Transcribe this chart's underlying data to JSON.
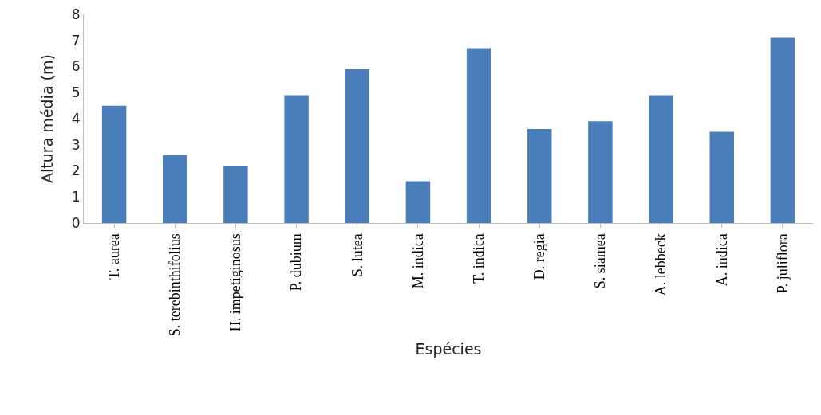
{
  "chart_data": {
    "type": "bar",
    "xlabel": "Espécies",
    "ylabel": "Altura média (m)",
    "categories": [
      "T. aurea",
      "S. terebinthifolius",
      "H. impetiginosus",
      "P. dubium",
      "S. lutea",
      "M. indica",
      "T. indica",
      "D. regia",
      "S. siamea",
      "A. lebbeck",
      "A. indica",
      "P. juliflora"
    ],
    "values": [
      4.5,
      2.6,
      2.2,
      4.9,
      5.9,
      1.6,
      6.7,
      3.6,
      3.9,
      4.9,
      3.5,
      7.1
    ],
    "color": "#4a7ebb",
    "ylim": [
      0,
      8
    ],
    "yticks": [
      0,
      1,
      2,
      3,
      4,
      5,
      6,
      7,
      8
    ],
    "grid": false,
    "legend": false
  }
}
